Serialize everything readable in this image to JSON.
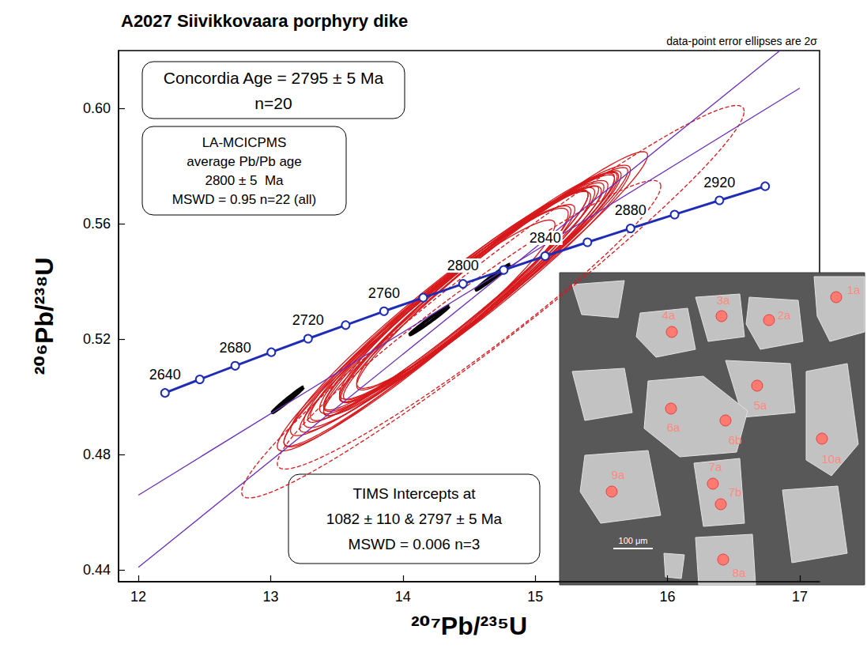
{
  "chart_data": {
    "type": "scatter",
    "title": "A2027 Siivikkovaara porphyry dike",
    "subtitle": "data-point error ellipses are 2σ",
    "x_label": "²⁰⁷Pb/²³⁵U",
    "y_label": "²⁰⁶Pb/²³⁸U",
    "xlim": [
      11.85,
      17.15
    ],
    "xticks": [
      12,
      13,
      14,
      15,
      16,
      17
    ],
    "ylim": [
      0.436,
      0.62
    ],
    "yticks": [
      0.44,
      0.48,
      0.52,
      0.56,
      {
        "value": 0.6,
        "label": "0.60"
      }
    ],
    "grid": false,
    "series": [
      {
        "type": "ellipse",
        "color": "#d7191c",
        "line_style": "solid",
        "x": [
          14.1,
          14.2,
          14.25,
          14.3,
          14.32,
          14.35,
          14.38,
          14.4,
          14.42,
          14.45,
          14.47,
          14.5,
          14.52,
          14.55,
          14.58,
          14.6,
          14.62,
          14.65,
          14.35,
          14.7
        ],
        "y": [
          0.5213,
          0.5247,
          0.5274,
          0.5296,
          0.5302,
          0.5318,
          0.5322,
          0.5335,
          0.5328,
          0.534,
          0.5352,
          0.5356,
          0.5362,
          0.5365,
          0.538,
          0.539,
          0.5393,
          0.5404,
          0.53,
          0.542
        ],
        "x_err": [
          1.05,
          1.1,
          1.0,
          1.15,
          0.95,
          1.05,
          1.1,
          1.0,
          1.2,
          1.05,
          0.95,
          1.1,
          1.0,
          1.15,
          1.05,
          0.95,
          1.1,
          1.0,
          1.25,
          1.15
        ],
        "y_err": [
          0.04,
          0.042,
          0.038,
          0.043,
          0.036,
          0.04,
          0.041,
          0.038,
          0.045,
          0.039,
          0.036,
          0.042,
          0.038,
          0.043,
          0.04,
          0.036,
          0.041,
          0.038,
          0.047,
          0.043
        ],
        "rho": [
          0.96,
          0.96,
          0.95,
          0.96,
          0.95,
          0.96,
          0.97,
          0.96,
          0.97,
          0.96,
          0.95,
          0.96,
          0.96,
          0.97,
          0.96,
          0.95,
          0.96,
          0.96,
          0.97,
          0.97
        ]
      },
      {
        "type": "ellipse",
        "color": "#d7191c",
        "line_style": "dashed",
        "x": [
          14.68,
          14.5
        ],
        "y": [
          0.533,
          0.525
        ],
        "x_err": [
          1.9,
          1.45
        ],
        "y_err": [
          0.068,
          0.05
        ],
        "rho": [
          0.97,
          0.96
        ]
      },
      {
        "type": "line",
        "color": "#6b2fb8",
        "line_style": "solid",
        "x": [
          12,
          17
        ],
        "y": [
          0.466,
          0.607
        ]
      },
      {
        "type": "line",
        "color": "#6b2fb8",
        "line_style": "solid",
        "x": [
          12,
          16.85
        ],
        "y": [
          0.441,
          0.62
        ]
      },
      {
        "type": "ellipse",
        "color": "#000000",
        "line_style": "thick",
        "x": [
          13.13,
          14.2,
          14.68
        ],
        "y": [
          0.499,
          0.5265,
          0.5415
        ],
        "x_err": [
          0.12,
          0.15,
          0.13
        ],
        "y_err": [
          0.0045,
          0.005,
          0.0045
        ],
        "rho": [
          0.99,
          0.99,
          0.99
        ]
      },
      {
        "type": "line",
        "color": "#1f2db5",
        "line_style": "solid",
        "marker": "circle",
        "x": [
          12.201,
          12.464,
          12.732,
          13.005,
          13.283,
          13.567,
          13.857,
          14.153,
          14.454,
          14.762,
          15.075,
          15.395,
          15.721,
          16.054,
          16.393,
          16.739
        ],
        "y": [
          0.5014,
          0.5061,
          0.5108,
          0.5155,
          0.5202,
          0.5249,
          0.5297,
          0.5344,
          0.5392,
          0.544,
          0.5488,
          0.5536,
          0.5584,
          0.5632,
          0.5681,
          0.573
        ],
        "labels": [
          2640,
          null,
          2680,
          null,
          2720,
          null,
          2760,
          null,
          2800,
          null,
          2840,
          null,
          2880,
          null,
          2920,
          null
        ]
      }
    ],
    "annotations": [
      {
        "lines": [
          "Concordia Age = 2795 ± 5 Ma",
          "n=20"
        ]
      },
      {
        "lines": [
          "LA-MCICPMS",
          "average Pb/Pb age",
          "2800 ± 5  Ma",
          "MSWD = 0.95 n=22 (all)"
        ]
      },
      {
        "lines": [
          "TIMS Intercepts at",
          "1082 ± 110 & 2797 ± 5 Ma",
          "MSWD = 0.006 n=3"
        ]
      }
    ],
    "inset": {
      "spots": [
        "1a",
        "2a",
        "3a",
        "4a",
        "5a",
        "6a",
        "6b",
        "7a",
        "7b",
        "8a",
        "9a",
        "10a"
      ],
      "scale_bar": "100 μm"
    }
  }
}
